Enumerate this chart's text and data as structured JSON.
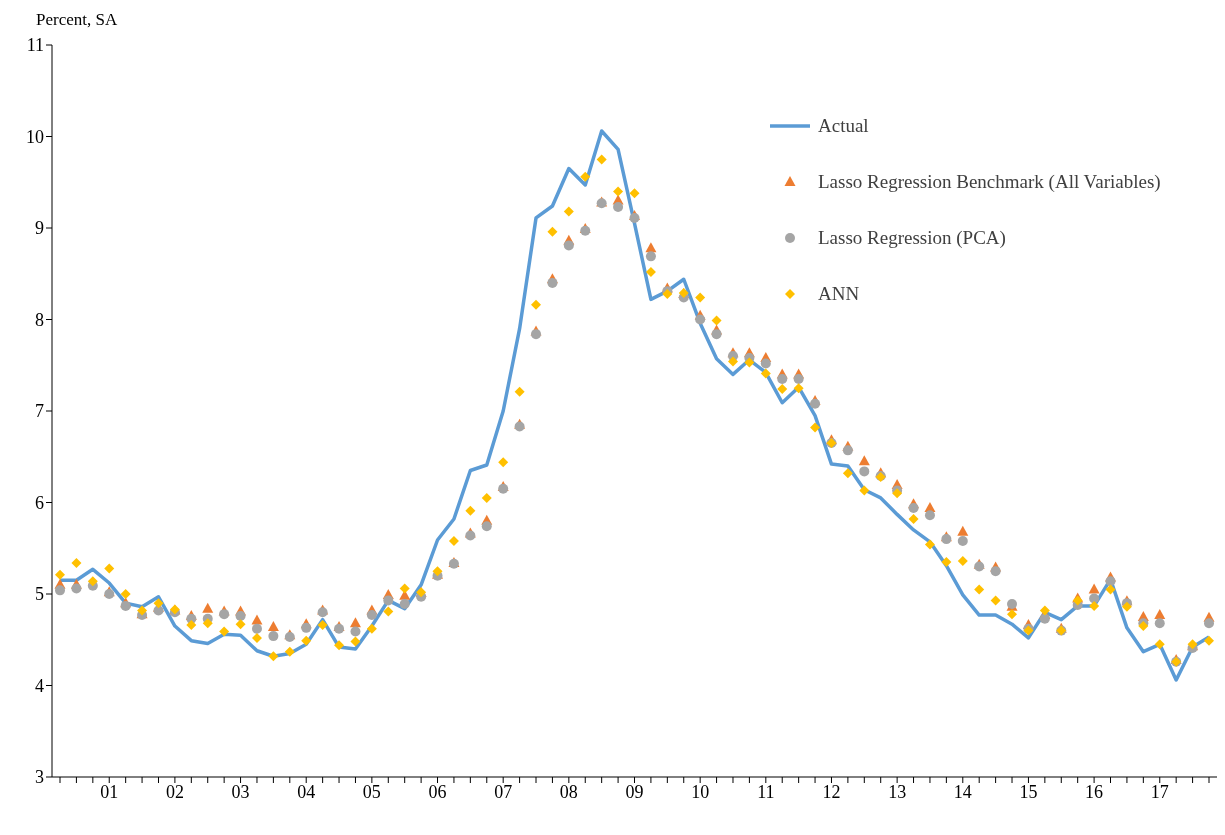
{
  "chart_data": {
    "type": "line",
    "ylabel": "Percent, SA",
    "categories": [
      null,
      null,
      null,
      "01",
      null,
      null,
      null,
      "02",
      null,
      null,
      null,
      "03",
      null,
      null,
      null,
      "04",
      null,
      null,
      null,
      "05",
      null,
      null,
      null,
      "06",
      null,
      null,
      null,
      "07",
      null,
      null,
      null,
      "08",
      null,
      null,
      null,
      "09",
      null,
      null,
      null,
      "10",
      null,
      null,
      null,
      "11",
      null,
      null,
      null,
      "12",
      null,
      null,
      null,
      "13",
      null,
      null,
      null,
      "14",
      null,
      null,
      null,
      "15",
      null,
      null,
      null,
      "16",
      null,
      null,
      null,
      "17",
      null,
      null,
      null
    ],
    "series": [
      {
        "name": "Actual",
        "type": "line",
        "color": "#5b9bd5",
        "marker": "none",
        "line_style": "solid",
        "values": [
          5.15,
          5.15,
          5.27,
          5.12,
          4.9,
          4.86,
          4.97,
          4.65,
          4.49,
          4.46,
          4.56,
          4.55,
          4.38,
          4.32,
          4.35,
          4.45,
          4.72,
          4.42,
          4.4,
          4.65,
          4.93,
          4.84,
          5.1,
          5.59,
          5.82,
          6.35,
          6.41,
          7.0,
          7.9,
          9.11,
          9.24,
          9.65,
          9.47,
          10.06,
          9.86,
          9.05,
          8.22,
          8.31,
          8.44,
          7.96,
          7.57,
          7.4,
          7.56,
          7.42,
          7.09,
          7.26,
          6.95,
          6.42,
          6.4,
          6.14,
          6.05,
          5.87,
          5.7,
          5.57,
          5.31,
          4.99,
          4.77,
          4.77,
          4.67,
          4.52,
          4.8,
          4.72,
          4.87,
          4.87,
          5.16,
          4.63,
          4.37,
          4.45,
          4.06,
          4.42,
          4.53
        ]
      },
      {
        "name": "Lasso Regression Benchmark (All Variables)",
        "type": "scatter",
        "color": "#ed7d31",
        "marker": "triangle",
        "values": [
          5.1,
          5.1,
          null,
          5.02,
          4.9,
          4.78,
          4.85,
          4.82,
          4.76,
          4.84,
          4.81,
          4.81,
          4.71,
          4.64,
          4.55,
          4.67,
          4.82,
          4.64,
          4.68,
          4.82,
          4.99,
          4.98,
          5.01,
          5.21,
          5.34,
          5.66,
          5.8,
          6.17,
          6.85,
          7.87,
          8.44,
          8.86,
          8.99,
          9.28,
          9.3,
          9.13,
          8.78,
          8.34,
          8.28,
          8.04,
          7.88,
          7.63,
          7.63,
          7.58,
          7.4,
          7.4,
          7.11,
          6.68,
          6.61,
          6.45,
          6.32,
          6.19,
          5.98,
          5.94,
          5.62,
          5.68,
          5.32,
          5.29,
          4.86,
          4.66,
          4.77,
          4.62,
          4.95,
          5.05,
          5.18,
          4.92,
          4.75,
          4.77,
          4.28,
          4.43,
          4.74
        ]
      },
      {
        "name": "Lasso Regression (PCA)",
        "type": "scatter",
        "color": "#a5a5a5",
        "marker": "circle",
        "values": [
          5.04,
          5.06,
          5.09,
          5.0,
          4.87,
          4.77,
          4.82,
          4.8,
          4.73,
          4.73,
          4.78,
          4.76,
          4.62,
          4.54,
          4.53,
          4.63,
          4.8,
          4.62,
          4.59,
          4.77,
          4.93,
          4.89,
          4.97,
          5.2,
          5.33,
          5.64,
          5.74,
          6.15,
          6.83,
          7.84,
          8.4,
          8.81,
          8.97,
          9.27,
          9.23,
          9.11,
          8.69,
          8.31,
          8.24,
          8.0,
          7.84,
          7.6,
          7.58,
          7.52,
          7.35,
          7.35,
          7.08,
          6.65,
          6.57,
          6.34,
          6.29,
          6.13,
          5.94,
          5.86,
          5.6,
          5.58,
          5.3,
          5.25,
          4.89,
          4.62,
          4.73,
          4.6,
          4.88,
          4.95,
          5.14,
          4.9,
          4.68,
          4.68,
          4.26,
          4.41,
          4.68
        ]
      },
      {
        "name": "ANN",
        "type": "scatter",
        "color": "#ffc000",
        "marker": "diamond",
        "values": [
          5.21,
          5.34,
          5.14,
          5.28,
          5.0,
          4.82,
          4.9,
          4.83,
          4.66,
          4.68,
          4.59,
          4.67,
          4.52,
          4.32,
          4.37,
          4.49,
          4.66,
          4.44,
          4.48,
          4.62,
          4.81,
          5.06,
          5.02,
          5.25,
          5.58,
          5.91,
          6.05,
          6.44,
          7.21,
          8.16,
          8.96,
          9.18,
          9.56,
          9.75,
          9.4,
          9.38,
          8.52,
          8.28,
          8.29,
          8.24,
          7.99,
          7.54,
          7.53,
          7.41,
          7.24,
          7.25,
          6.82,
          6.65,
          6.32,
          6.13,
          6.28,
          6.1,
          5.82,
          5.54,
          5.35,
          5.36,
          5.05,
          4.93,
          4.78,
          4.6,
          4.82,
          4.6,
          4.93,
          4.87,
          5.05,
          4.86,
          4.65,
          4.45,
          4.26,
          4.45,
          4.49
        ]
      }
    ],
    "ylim": [
      3,
      11
    ],
    "yticks": [
      3,
      4,
      5,
      6,
      7,
      8,
      9,
      10,
      11
    ],
    "grid": false,
    "legend": "top right"
  }
}
